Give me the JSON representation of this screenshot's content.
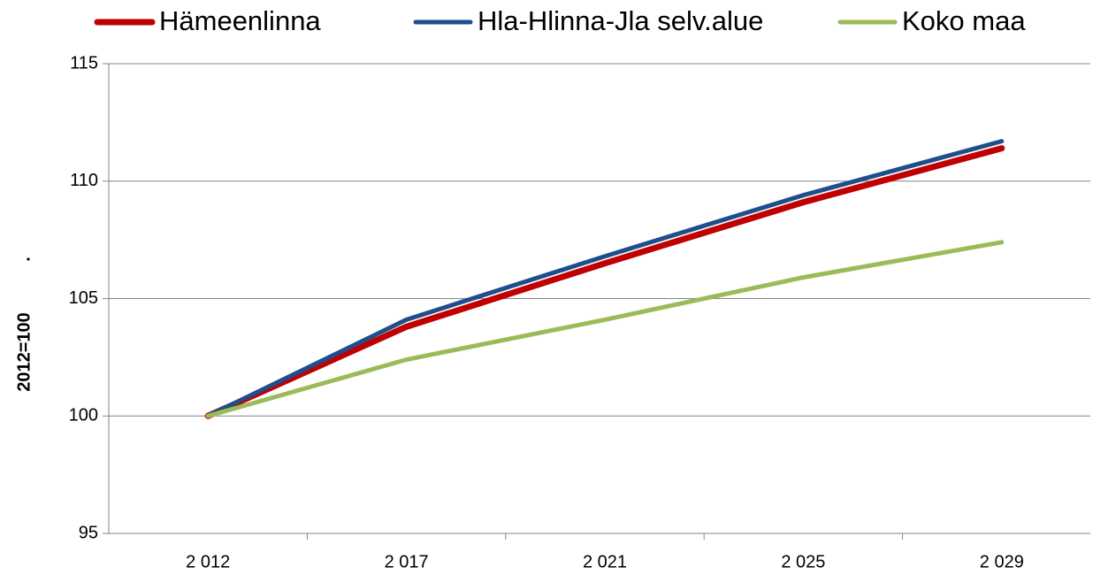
{
  "chart_data": {
    "type": "line",
    "categories": [
      "2 012",
      "2 017",
      "2 021",
      "2 025",
      "2 029"
    ],
    "series": [
      {
        "name": "Hämeenlinna",
        "color": "#c00000",
        "values": [
          100,
          103.8,
          106.5,
          109.1,
          111.4
        ]
      },
      {
        "name": "Hla-Hlinna-Jla selv.alue",
        "color": "#1f4e8c",
        "values": [
          100,
          104.1,
          106.8,
          109.4,
          111.7
        ]
      },
      {
        "name": "Koko maa",
        "color": "#9bbb59",
        "values": [
          100,
          102.4,
          104.1,
          105.9,
          107.4
        ]
      }
    ],
    "ylim": [
      95,
      115
    ],
    "yticks": [
      95,
      100,
      105,
      110,
      115
    ],
    "ylabel": "2012=100",
    "annotations": [
      "."
    ],
    "grid": true,
    "legend": "top"
  }
}
